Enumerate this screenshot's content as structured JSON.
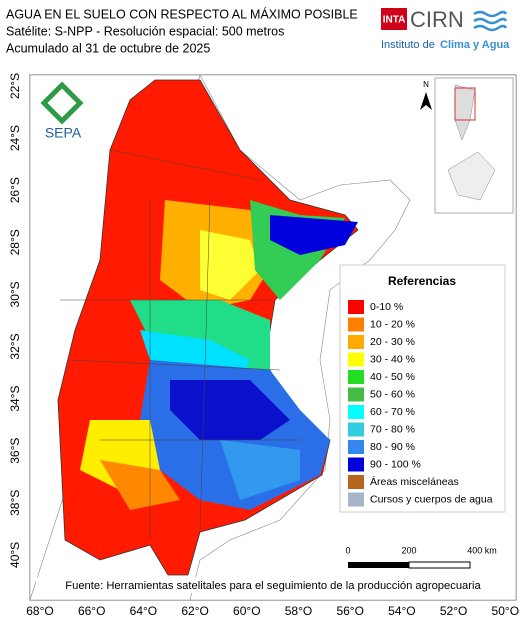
{
  "header": {
    "lines": [
      "AGUA EN EL SUELO CON RESPECTO AL MÁXIMO POSIBLE",
      "Satélite: S-NPP - Resolución espacial: 500 metros",
      "Acumulado al 31 de octubre de 2025"
    ]
  },
  "logos": {
    "inta": "INTA",
    "cirn": "CIRN",
    "institute": "Instituto de",
    "institute_highlight": "Clima y Agua",
    "sepa": "SEPA"
  },
  "north": "N",
  "legend": {
    "title": "Referencias",
    "items": [
      {
        "label": "0-10 %",
        "color": "#ff0000"
      },
      {
        "label": "10 - 20 %",
        "color": "#ff7f00"
      },
      {
        "label": "20 - 30 %",
        "color": "#ffaa00"
      },
      {
        "label": "30 - 40 %",
        "color": "#ffff00"
      },
      {
        "label": "40 - 50 %",
        "color": "#22dd22"
      },
      {
        "label": "50 - 60 %",
        "color": "#44bb44"
      },
      {
        "label": "60 - 70 %",
        "color": "#00ffff"
      },
      {
        "label": "70 - 80 %",
        "color": "#33ccdd"
      },
      {
        "label": "80 - 90 %",
        "color": "#3388ee"
      },
      {
        "label": "90 - 100 %",
        "color": "#0000dd"
      },
      {
        "label": "Áreas misceláneas",
        "color": "#b5651d"
      },
      {
        "label": "Cursos y cuerpos de agua",
        "color": "#a8b4c8"
      }
    ]
  },
  "scale": {
    "labels": [
      "0",
      "200",
      "400 km"
    ]
  },
  "latitudes": [
    "22°S",
    "24°S",
    "26°S",
    "28°S",
    "30°S",
    "32°S",
    "34°S",
    "36°S",
    "38°S",
    "40°S"
  ],
  "longitudes": [
    "68°O",
    "66°O",
    "64°O",
    "62°O",
    "60°O",
    "58°O",
    "56°O",
    "54°O",
    "52°O",
    "50°O"
  ],
  "source": "Fuente: Herramientas satelitales para el seguimiento de la producción agropecuaria"
}
